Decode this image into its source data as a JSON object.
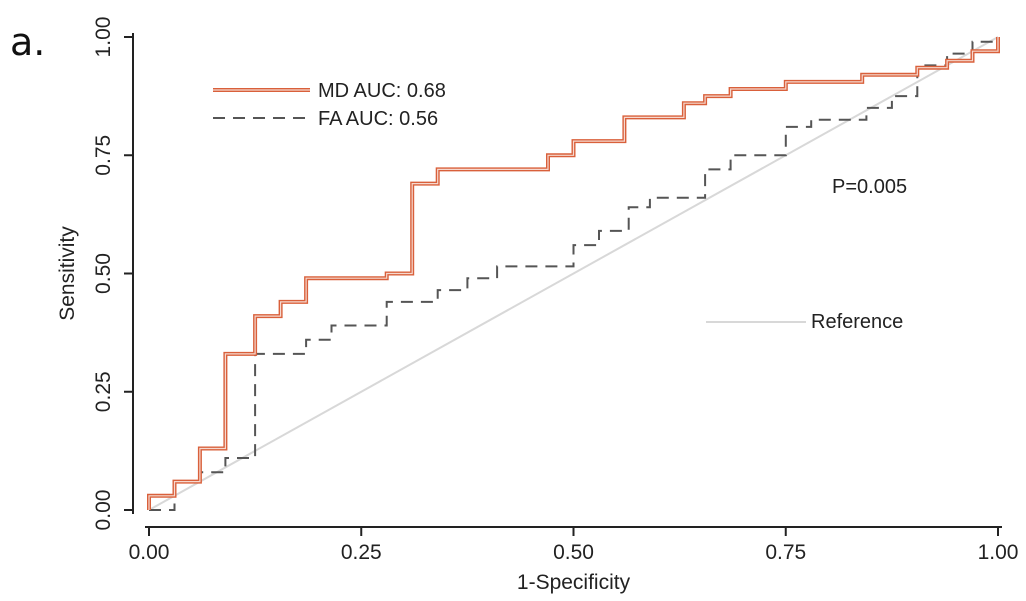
{
  "panel_label": "a.",
  "chart_data": {
    "type": "line",
    "title": "",
    "xlabel": "1-Specificity",
    "ylabel": "Sensitivity",
    "xlim": [
      0,
      1
    ],
    "ylim": [
      0,
      1
    ],
    "x_ticks": [
      "0.00",
      "0.25",
      "0.50",
      "0.75",
      "1.00"
    ],
    "y_ticks": [
      "0.00",
      "0.25",
      "0.50",
      "0.75",
      "1.00"
    ],
    "grid": false,
    "legend_placement": "top-left",
    "annotations": [
      {
        "text": "P=0.005",
        "x": 0.81,
        "y": 0.68
      },
      {
        "text": "Reference",
        "x": 0.78,
        "y": 0.39
      }
    ],
    "series": [
      {
        "name": "MD AUC: 0.68",
        "color": "#d9603b",
        "style": "solid-double",
        "points": [
          [
            0,
            0
          ],
          [
            0,
            0.03
          ],
          [
            0.03,
            0.03
          ],
          [
            0.03,
            0.06
          ],
          [
            0.06,
            0.06
          ],
          [
            0.06,
            0.13
          ],
          [
            0.09,
            0.13
          ],
          [
            0.09,
            0.33
          ],
          [
            0.125,
            0.33
          ],
          [
            0.125,
            0.41
          ],
          [
            0.155,
            0.41
          ],
          [
            0.155,
            0.44
          ],
          [
            0.185,
            0.44
          ],
          [
            0.185,
            0.49
          ],
          [
            0.28,
            0.49
          ],
          [
            0.28,
            0.5
          ],
          [
            0.31,
            0.5
          ],
          [
            0.31,
            0.69
          ],
          [
            0.34,
            0.69
          ],
          [
            0.34,
            0.72
          ],
          [
            0.47,
            0.72
          ],
          [
            0.47,
            0.75
          ],
          [
            0.5,
            0.75
          ],
          [
            0.5,
            0.78
          ],
          [
            0.56,
            0.78
          ],
          [
            0.56,
            0.83
          ],
          [
            0.63,
            0.83
          ],
          [
            0.63,
            0.86
          ],
          [
            0.655,
            0.86
          ],
          [
            0.655,
            0.875
          ],
          [
            0.685,
            0.875
          ],
          [
            0.685,
            0.89
          ],
          [
            0.75,
            0.89
          ],
          [
            0.75,
            0.905
          ],
          [
            0.84,
            0.905
          ],
          [
            0.84,
            0.92
          ],
          [
            0.905,
            0.92
          ],
          [
            0.905,
            0.935
          ],
          [
            0.94,
            0.935
          ],
          [
            0.94,
            0.95
          ],
          [
            0.97,
            0.95
          ],
          [
            0.97,
            0.97
          ],
          [
            1.0,
            0.97
          ],
          [
            1.0,
            1.0
          ]
        ]
      },
      {
        "name": "FA AUC: 0.56",
        "color": "#555555",
        "style": "dashed",
        "points": [
          [
            0,
            0
          ],
          [
            0.03,
            0
          ],
          [
            0.03,
            0.06
          ],
          [
            0.06,
            0.06
          ],
          [
            0.06,
            0.08
          ],
          [
            0.09,
            0.08
          ],
          [
            0.09,
            0.11
          ],
          [
            0.125,
            0.11
          ],
          [
            0.125,
            0.33
          ],
          [
            0.185,
            0.33
          ],
          [
            0.185,
            0.36
          ],
          [
            0.215,
            0.36
          ],
          [
            0.215,
            0.39
          ],
          [
            0.28,
            0.39
          ],
          [
            0.28,
            0.44
          ],
          [
            0.34,
            0.44
          ],
          [
            0.34,
            0.465
          ],
          [
            0.375,
            0.465
          ],
          [
            0.375,
            0.49
          ],
          [
            0.41,
            0.49
          ],
          [
            0.41,
            0.515
          ],
          [
            0.5,
            0.515
          ],
          [
            0.5,
            0.56
          ],
          [
            0.53,
            0.56
          ],
          [
            0.53,
            0.59
          ],
          [
            0.565,
            0.59
          ],
          [
            0.565,
            0.64
          ],
          [
            0.59,
            0.64
          ],
          [
            0.59,
            0.66
          ],
          [
            0.655,
            0.66
          ],
          [
            0.655,
            0.72
          ],
          [
            0.685,
            0.72
          ],
          [
            0.685,
            0.75
          ],
          [
            0.75,
            0.75
          ],
          [
            0.75,
            0.81
          ],
          [
            0.78,
            0.81
          ],
          [
            0.78,
            0.825
          ],
          [
            0.845,
            0.825
          ],
          [
            0.845,
            0.85
          ],
          [
            0.875,
            0.85
          ],
          [
            0.875,
            0.875
          ],
          [
            0.905,
            0.875
          ],
          [
            0.905,
            0.94
          ],
          [
            0.94,
            0.94
          ],
          [
            0.94,
            0.965
          ],
          [
            0.97,
            0.965
          ],
          [
            0.97,
            0.99
          ],
          [
            1.0,
            0.99
          ]
        ]
      },
      {
        "name": "Reference",
        "color": "#d8d8d8",
        "style": "solid",
        "points": [
          [
            0,
            0
          ],
          [
            1,
            1
          ]
        ]
      }
    ]
  }
}
